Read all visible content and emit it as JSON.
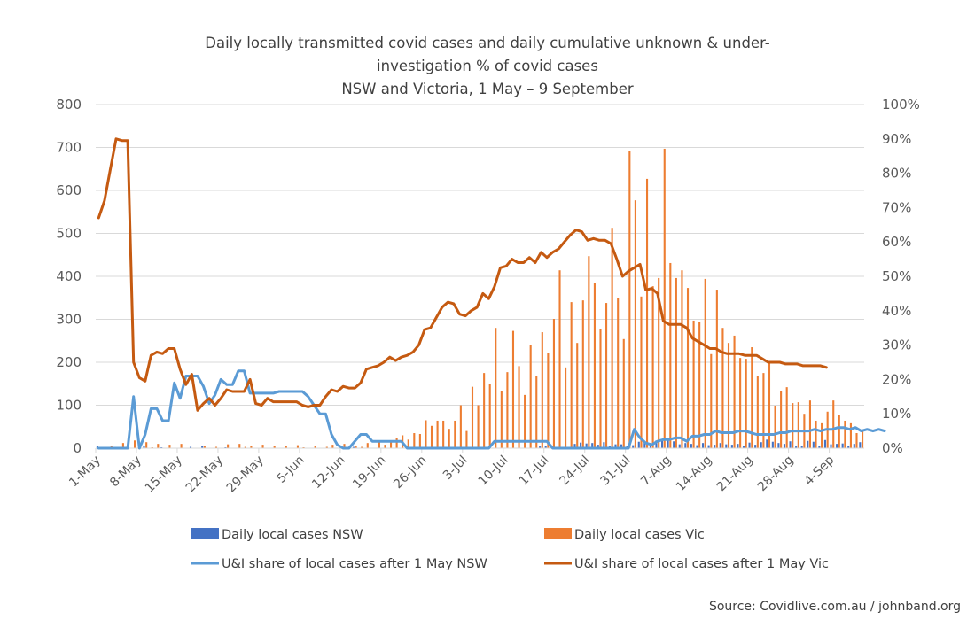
{
  "chart_data": {
    "type": "bar+line",
    "title": [
      "Daily locally transmitted  covid cases and  daily cumulative unknown & under-",
      "investigation % of covid cases",
      "NSW and Victoria, 1 May – 9 September"
    ],
    "source": "Source: Covidlive.com.au / johnband.org",
    "start_date": "1-May",
    "days": 132,
    "left_axis": {
      "min": 0,
      "max": 800,
      "step": 100,
      "ticks": [
        "0",
        "100",
        "200",
        "300",
        "400",
        "500",
        "600",
        "700",
        "800"
      ]
    },
    "right_axis": {
      "min": 0,
      "max": 100,
      "step": 10,
      "ticks": [
        "0%",
        "10%",
        "20%",
        "30%",
        "40%",
        "50%",
        "60%",
        "70%",
        "80%",
        "90%",
        "100%"
      ]
    },
    "x_tick_labels": [
      "1-May",
      "8-May",
      "15-May",
      "22-May",
      "29-May",
      "5-Jun",
      "12-Jun",
      "19-Jun",
      "26-Jun",
      "3-Jul",
      "10-Jul",
      "17-Jul",
      "24-Jul",
      "31-Jul",
      "7-Aug",
      "14-Aug",
      "21-Aug",
      "28-Aug",
      "4-Sep"
    ],
    "grid": true,
    "legend_position": "bottom",
    "series": [
      {
        "name": "Daily local cases NSW",
        "type": "bar",
        "axis": "left",
        "color": "#4472C4",
        "values": [
          6,
          2,
          3,
          1,
          0,
          0,
          0,
          0,
          5,
          0,
          0,
          2,
          0,
          0,
          1,
          0,
          3,
          0,
          5,
          1,
          1,
          0,
          2,
          0,
          0,
          0,
          0,
          0,
          0,
          0,
          0,
          0,
          0,
          0,
          0,
          0,
          0,
          0,
          0,
          0,
          0,
          0,
          0,
          0,
          3,
          0,
          0,
          0,
          0,
          0,
          0,
          0,
          0,
          0,
          0,
          0,
          0,
          0,
          0,
          0,
          0,
          0,
          0,
          0,
          0,
          0,
          0,
          0,
          0,
          0,
          0,
          0,
          0,
          0,
          0,
          0,
          4,
          6,
          5,
          2,
          1,
          2,
          10,
          13,
          11,
          12,
          8,
          14,
          5,
          9,
          9,
          5,
          7,
          15,
          13,
          6,
          18,
          20,
          18,
          16,
          9,
          12,
          10,
          7,
          12,
          7,
          8,
          12,
          9,
          8,
          10,
          6,
          13,
          8,
          14,
          20,
          15,
          12,
          10,
          16,
          4,
          6,
          17,
          15,
          6,
          19,
          9,
          10,
          11,
          6,
          10,
          14
        ]
      },
      {
        "name": "Daily local cases Vic",
        "type": "bar",
        "axis": "left",
        "color": "#ED7D31",
        "values": [
          0,
          0,
          5,
          0,
          12,
          0,
          18,
          0,
          14,
          2,
          10,
          0,
          8,
          0,
          10,
          0,
          0,
          0,
          5,
          0,
          3,
          0,
          9,
          0,
          10,
          3,
          5,
          0,
          8,
          0,
          6,
          0,
          6,
          0,
          7,
          2,
          0,
          5,
          0,
          3,
          8,
          0,
          10,
          0,
          4,
          3,
          12,
          0,
          14,
          8,
          17,
          24,
          30,
          20,
          35,
          33,
          65,
          52,
          64,
          64,
          45,
          64,
          100,
          40,
          143,
          100,
          175,
          150,
          280,
          134,
          177,
          273,
          191,
          124,
          241,
          167,
          270,
          222,
          301,
          414,
          188,
          340,
          245,
          344,
          447,
          384,
          278,
          338,
          513,
          350,
          254,
          691,
          577,
          353,
          627,
          377,
          396,
          697,
          431,
          396,
          414,
          373,
          297,
          293,
          394,
          219,
          369,
          280,
          245,
          262,
          210,
          208,
          235,
          167,
          175,
          200,
          99,
          132,
          142,
          105,
          107,
          80,
          111,
          64,
          58,
          85,
          111,
          78,
          64,
          58,
          35,
          41
        ]
      },
      {
        "name": "U&I share of local cases after 1 May NSW",
        "type": "line",
        "axis": "right",
        "unit": "%",
        "color": "#5B9BD5",
        "values": [
          0,
          0,
          0,
          0,
          0,
          0,
          15,
          0,
          4,
          11.5,
          11.5,
          8,
          8,
          19,
          14.5,
          21,
          21,
          21,
          18,
          13,
          15.5,
          20,
          18.5,
          18.5,
          22.5,
          22.5,
          16,
          16,
          16,
          16,
          16,
          16.5,
          16.5,
          16.5,
          16.5,
          16.5,
          15,
          12.5,
          10,
          10,
          4,
          1,
          0,
          0,
          2,
          4,
          4,
          2,
          2,
          2,
          2,
          2,
          2,
          0,
          0,
          0,
          0,
          0,
          0,
          0,
          0,
          0,
          0,
          0,
          0,
          0,
          0,
          0,
          2,
          2,
          2,
          2,
          2,
          2,
          2,
          2,
          2,
          2,
          0,
          0,
          0,
          0,
          0,
          0,
          0,
          0,
          0,
          0,
          0,
          0,
          0,
          0,
          5.5,
          3,
          1.5,
          1,
          2,
          2.5,
          2.5,
          3,
          3,
          2,
          3.5,
          3.5,
          4,
          4,
          5,
          4.5,
          4.5,
          4.5,
          5,
          5,
          4.5,
          4,
          4,
          4,
          4,
          4.5,
          4.5,
          5,
          5,
          5,
          5,
          5.5,
          5,
          5.5,
          5.5,
          6,
          6,
          5.5,
          6,
          5,
          5.5,
          5,
          5.5,
          5
        ]
      },
      {
        "name": "U&I share of local cases after 1 May Vic",
        "type": "line",
        "axis": "right",
        "unit": "%",
        "color": "#C55A11",
        "values": [
          67,
          72,
          81,
          90,
          89.5,
          89.5,
          25,
          20.5,
          19.5,
          27,
          28,
          27.5,
          29,
          29,
          23,
          18.5,
          21.5,
          11,
          13,
          14.5,
          12.5,
          14.5,
          17,
          16.5,
          16.5,
          16.5,
          20,
          13,
          12.5,
          14.5,
          13.5,
          13.5,
          13.5,
          13.5,
          13.5,
          12.5,
          12,
          12.5,
          12.5,
          15,
          17,
          16.5,
          18,
          17.5,
          17.5,
          19,
          23,
          23.5,
          24,
          25,
          26.5,
          25.5,
          26.5,
          27,
          28,
          30,
          34.5,
          35,
          38,
          41,
          42.5,
          42,
          39,
          38.5,
          40,
          41,
          45,
          43.5,
          47,
          52.5,
          53,
          55,
          54,
          54,
          55.5,
          54,
          57,
          55.5,
          57,
          58,
          60,
          62,
          63.5,
          63,
          60.5,
          61,
          60.5,
          60.5,
          59.5,
          55,
          50,
          51.5,
          52.5,
          53.5,
          46,
          46.5,
          45,
          37,
          36,
          36,
          36,
          35,
          32,
          31,
          30,
          29,
          29,
          28,
          27.5,
          27.5,
          27.5,
          27,
          27,
          27,
          26,
          25,
          25,
          25,
          24.5,
          24.5,
          24.5,
          24,
          24,
          24,
          24,
          23.5
        ]
      }
    ]
  }
}
